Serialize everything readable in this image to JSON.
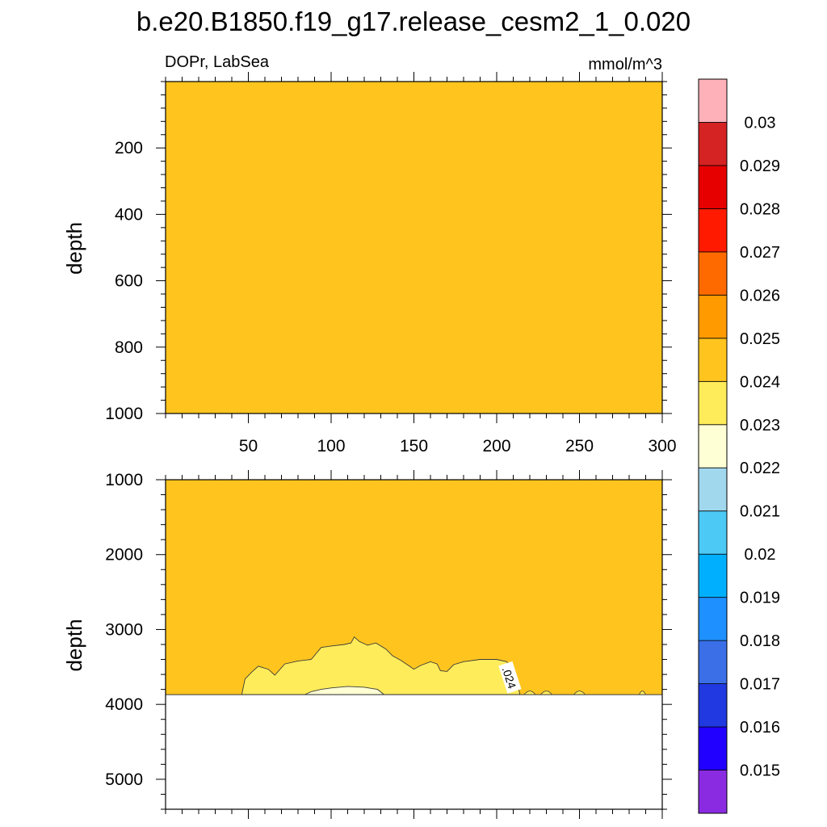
{
  "title": "b.e20.B1850.f19_g17.release_cesm2_1_0.020",
  "chart_data": {
    "type": "contour",
    "variable_label": "DOPr, LabSea",
    "units_label": "mmol/m^3",
    "panels": [
      {
        "id": "upper",
        "ylabel": "depth",
        "y_range": [
          0,
          1000
        ],
        "y_reversed": true,
        "y_ticks": [
          200,
          400,
          600,
          800,
          1000
        ],
        "x_range": [
          0,
          300
        ],
        "x_ticks": [
          50,
          100,
          150,
          200,
          250,
          300
        ],
        "fill_band": [
          0.024,
          0.025
        ]
      },
      {
        "id": "lower",
        "ylabel": "depth",
        "y_range": [
          1000,
          5400
        ],
        "y_reversed": true,
        "y_ticks": [
          1000,
          2000,
          3000,
          4000,
          5000
        ],
        "x_range": [
          0,
          300
        ],
        "background_band": [
          0.024,
          0.025
        ],
        "seafloor_depth": 3870,
        "contour_label": ".024",
        "contour_024_boundary": [
          [
            46,
            3870
          ],
          [
            48,
            3660
          ],
          [
            52,
            3570
          ],
          [
            56,
            3490
          ],
          [
            62,
            3530
          ],
          [
            66,
            3610
          ],
          [
            72,
            3460
          ],
          [
            80,
            3420
          ],
          [
            88,
            3400
          ],
          [
            94,
            3240
          ],
          [
            100,
            3220
          ],
          [
            108,
            3200
          ],
          [
            112,
            3180
          ],
          [
            114,
            3100
          ],
          [
            117,
            3160
          ],
          [
            122,
            3210
          ],
          [
            127,
            3180
          ],
          [
            133,
            3260
          ],
          [
            137,
            3350
          ],
          [
            142,
            3410
          ],
          [
            146,
            3470
          ],
          [
            150,
            3530
          ],
          [
            154,
            3480
          ],
          [
            160,
            3430
          ],
          [
            164,
            3460
          ],
          [
            166,
            3550
          ],
          [
            170,
            3560
          ],
          [
            174,
            3470
          ],
          [
            180,
            3430
          ],
          [
            190,
            3400
          ],
          [
            200,
            3400
          ],
          [
            206,
            3430
          ],
          [
            210,
            3540
          ],
          [
            212,
            3640
          ],
          [
            214,
            3870
          ]
        ],
        "contour_023_boundary": [
          [
            84,
            3870
          ],
          [
            88,
            3830
          ],
          [
            94,
            3800
          ],
          [
            100,
            3780
          ],
          [
            110,
            3760
          ],
          [
            120,
            3770
          ],
          [
            128,
            3800
          ],
          [
            132,
            3870
          ]
        ],
        "small_features_x": [
          220,
          230,
          250,
          288
        ]
      }
    ],
    "colorbar": {
      "levels": [
        0.015,
        0.016,
        0.017,
        0.018,
        0.019,
        0.02,
        0.021,
        0.022,
        0.023,
        0.024,
        0.025,
        0.026,
        0.027,
        0.028,
        0.029,
        0.03
      ],
      "tick_labels": [
        "0.015",
        "0.016",
        "0.017",
        "0.018",
        "0.019",
        "0.02",
        "0.021",
        "0.022",
        "0.023",
        "0.024",
        "0.025",
        "0.026",
        "0.027",
        "0.028",
        "0.029",
        "0.03"
      ],
      "colors": [
        "#8a2be2",
        "#2200ff",
        "#2039e0",
        "#3a6fe8",
        "#1e90ff",
        "#00b0ff",
        "#4cc9f4",
        "#a2d8ee",
        "#ffffd5",
        "#ffec5a",
        "#ffc51e",
        "#ff9a00",
        "#ff6a00",
        "#ff1a00",
        "#e60000",
        "#d52222",
        "#ffb1b9"
      ]
    }
  }
}
